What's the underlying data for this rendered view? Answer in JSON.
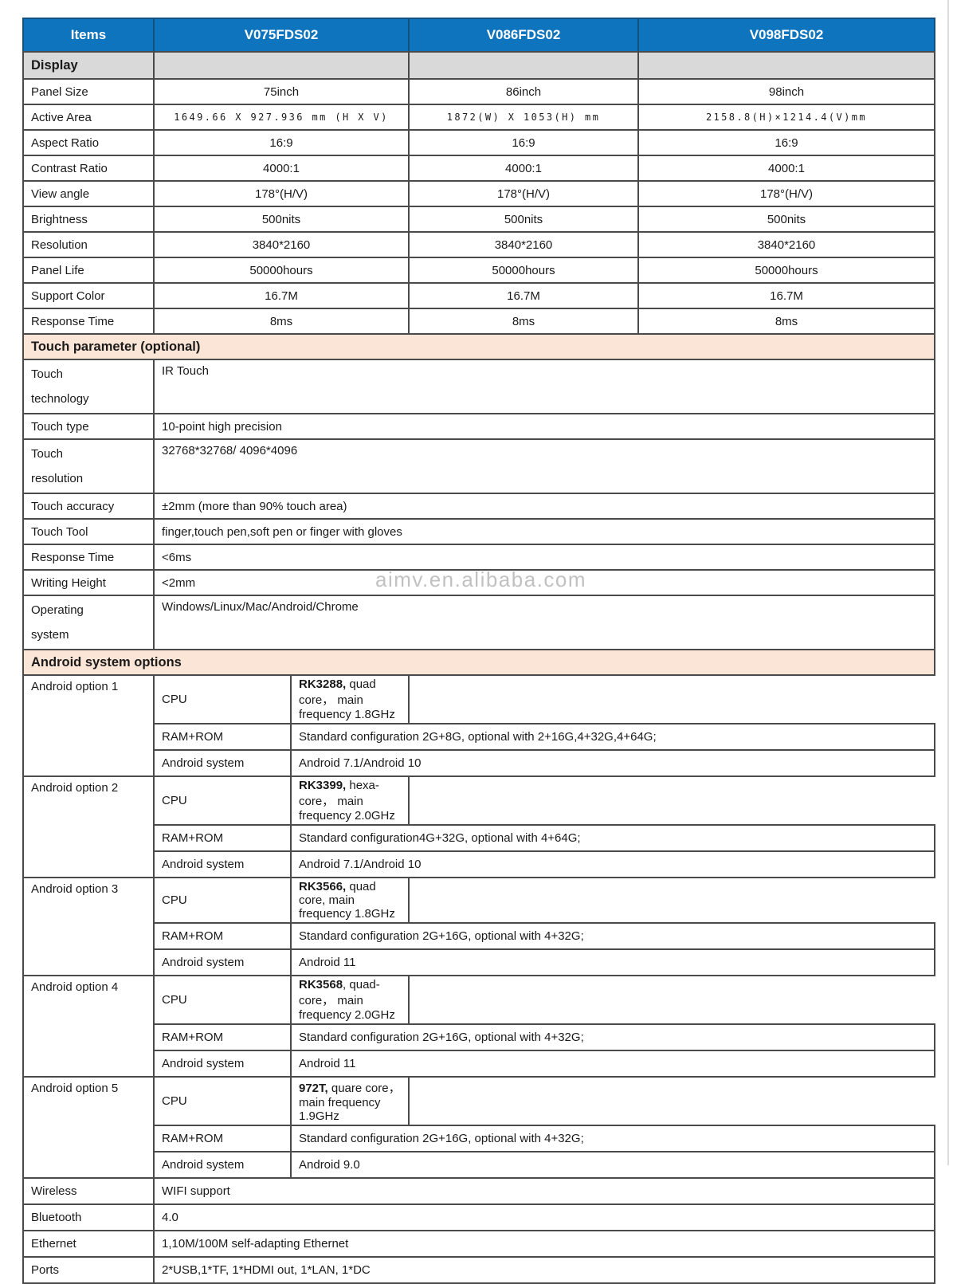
{
  "header": {
    "columns": [
      "Items",
      "V075FDS02",
      "V086FDS02",
      "V098FDS02"
    ]
  },
  "watermark": "aimv.en.alibaba.com",
  "colors": {
    "header_blue": "#0E74BE",
    "section_gray": "#D9D9D9",
    "section_peach": "#FBE5D6",
    "border": "#4a4a4a"
  },
  "sections": {
    "display": {
      "title": "Display",
      "rows": [
        {
          "label": "Panel Size",
          "v1": "75inch",
          "v2": "86inch",
          "v3": "98inch"
        },
        {
          "label": "Active Area",
          "v1": "1649.66 X 927.936 mm (H X V)",
          "v2": "1872(W) X 1053(H)  mm",
          "v3": "2158.8(H)×1214.4(V)mm"
        },
        {
          "label": "Aspect Ratio",
          "v1": "16:9",
          "v2": "16:9",
          "v3": "16:9"
        },
        {
          "label": "Contrast Ratio",
          "v1": "4000:1",
          "v2": "4000:1",
          "v3": "4000:1"
        },
        {
          "label": "View angle",
          "v1": "178°(H/V)",
          "v2": "178°(H/V)",
          "v3": "178°(H/V)"
        },
        {
          "label": "Brightness",
          "v1": "500nits",
          "v2": "500nits",
          "v3": "500nits"
        },
        {
          "label": "Resolution",
          "v1": "3840*2160",
          "v2": "3840*2160",
          "v3": "3840*2160"
        },
        {
          "label": "Panel Life",
          "v1": "50000hours",
          "v2": "50000hours",
          "v3": "50000hours"
        },
        {
          "label": "Support Color",
          "v1": "16.7M",
          "v2": "16.7M",
          "v3": "16.7M"
        },
        {
          "label": "Response Time",
          "v1": "8ms",
          "v2": "8ms",
          "v3": "8ms"
        }
      ]
    },
    "touch": {
      "title": "Touch parameter (optional)",
      "rows": [
        {
          "label": "Touch\ntechnology",
          "value": "IR Touch"
        },
        {
          "label": "Touch type",
          "value": "10-point high precision"
        },
        {
          "label": "Touch\nresolution",
          "value": "32768*32768/ 4096*4096"
        },
        {
          "label": "Touch accuracy",
          "value": "±2mm (more than 90% touch area)"
        },
        {
          "label": "Touch Tool",
          "value": "finger,touch pen,soft pen or finger with gloves"
        },
        {
          "label": "Response Time",
          "value": "<6ms"
        },
        {
          "label": "Writing Height",
          "value": "<2mm"
        },
        {
          "label": "Operating\nsystem",
          "value": "Windows/Linux/Mac/Android/Chrome"
        }
      ]
    },
    "android": {
      "title": "Android system options",
      "cpu_label": "CPU",
      "ram_label": "RAM+ROM",
      "sys_label": "Android system",
      "options": [
        {
          "label": "Android option 1",
          "cpu_chip": "RK3288,",
          "cpu_rest": " quad core， main frequency 1.8GHz",
          "ram": "Standard configuration 2G+8G, optional with 2+16G,4+32G,4+64G;",
          "sys": "Android 7.1/Android 10"
        },
        {
          "label": "Android option 2",
          "cpu_chip": "RK3399,",
          "cpu_rest": " hexa-core， main frequency 2.0GHz",
          "ram": "Standard configuration4G+32G, optional with 4+64G;",
          "sys": "Android 7.1/Android 10"
        },
        {
          "label": "Android option 3",
          "cpu_chip": "RK3566,",
          "cpu_rest": " quad core, main frequency 1.8GHz",
          "ram": "Standard configuration 2G+16G, optional with 4+32G;",
          "sys": "Android 11"
        },
        {
          "label": "Android option 4",
          "cpu_chip": "RK3568",
          "cpu_rest": ", quad-core， main frequency 2.0GHz",
          "ram": "Standard configuration 2G+16G, optional with 4+32G;",
          "sys": "Android 11"
        },
        {
          "label": "Android option 5",
          "cpu_chip": "972T,",
          "cpu_rest": " quare core， main frequency 1.9GHz",
          "ram": "Standard configuration 2G+16G, optional with 4+32G;",
          "sys": "Android 9.0"
        }
      ]
    },
    "connectivity": {
      "rows": [
        {
          "label": "Wireless",
          "value": "WIFI support"
        },
        {
          "label": "Bluetooth",
          "value": "4.0"
        },
        {
          "label": "Ethernet",
          "value": "1,10M/100M self-adapting Ethernet"
        },
        {
          "label": "Ports",
          "value": "2*USB,1*TF, 1*HDMI out, 1*LAN, 1*DC"
        }
      ]
    }
  }
}
